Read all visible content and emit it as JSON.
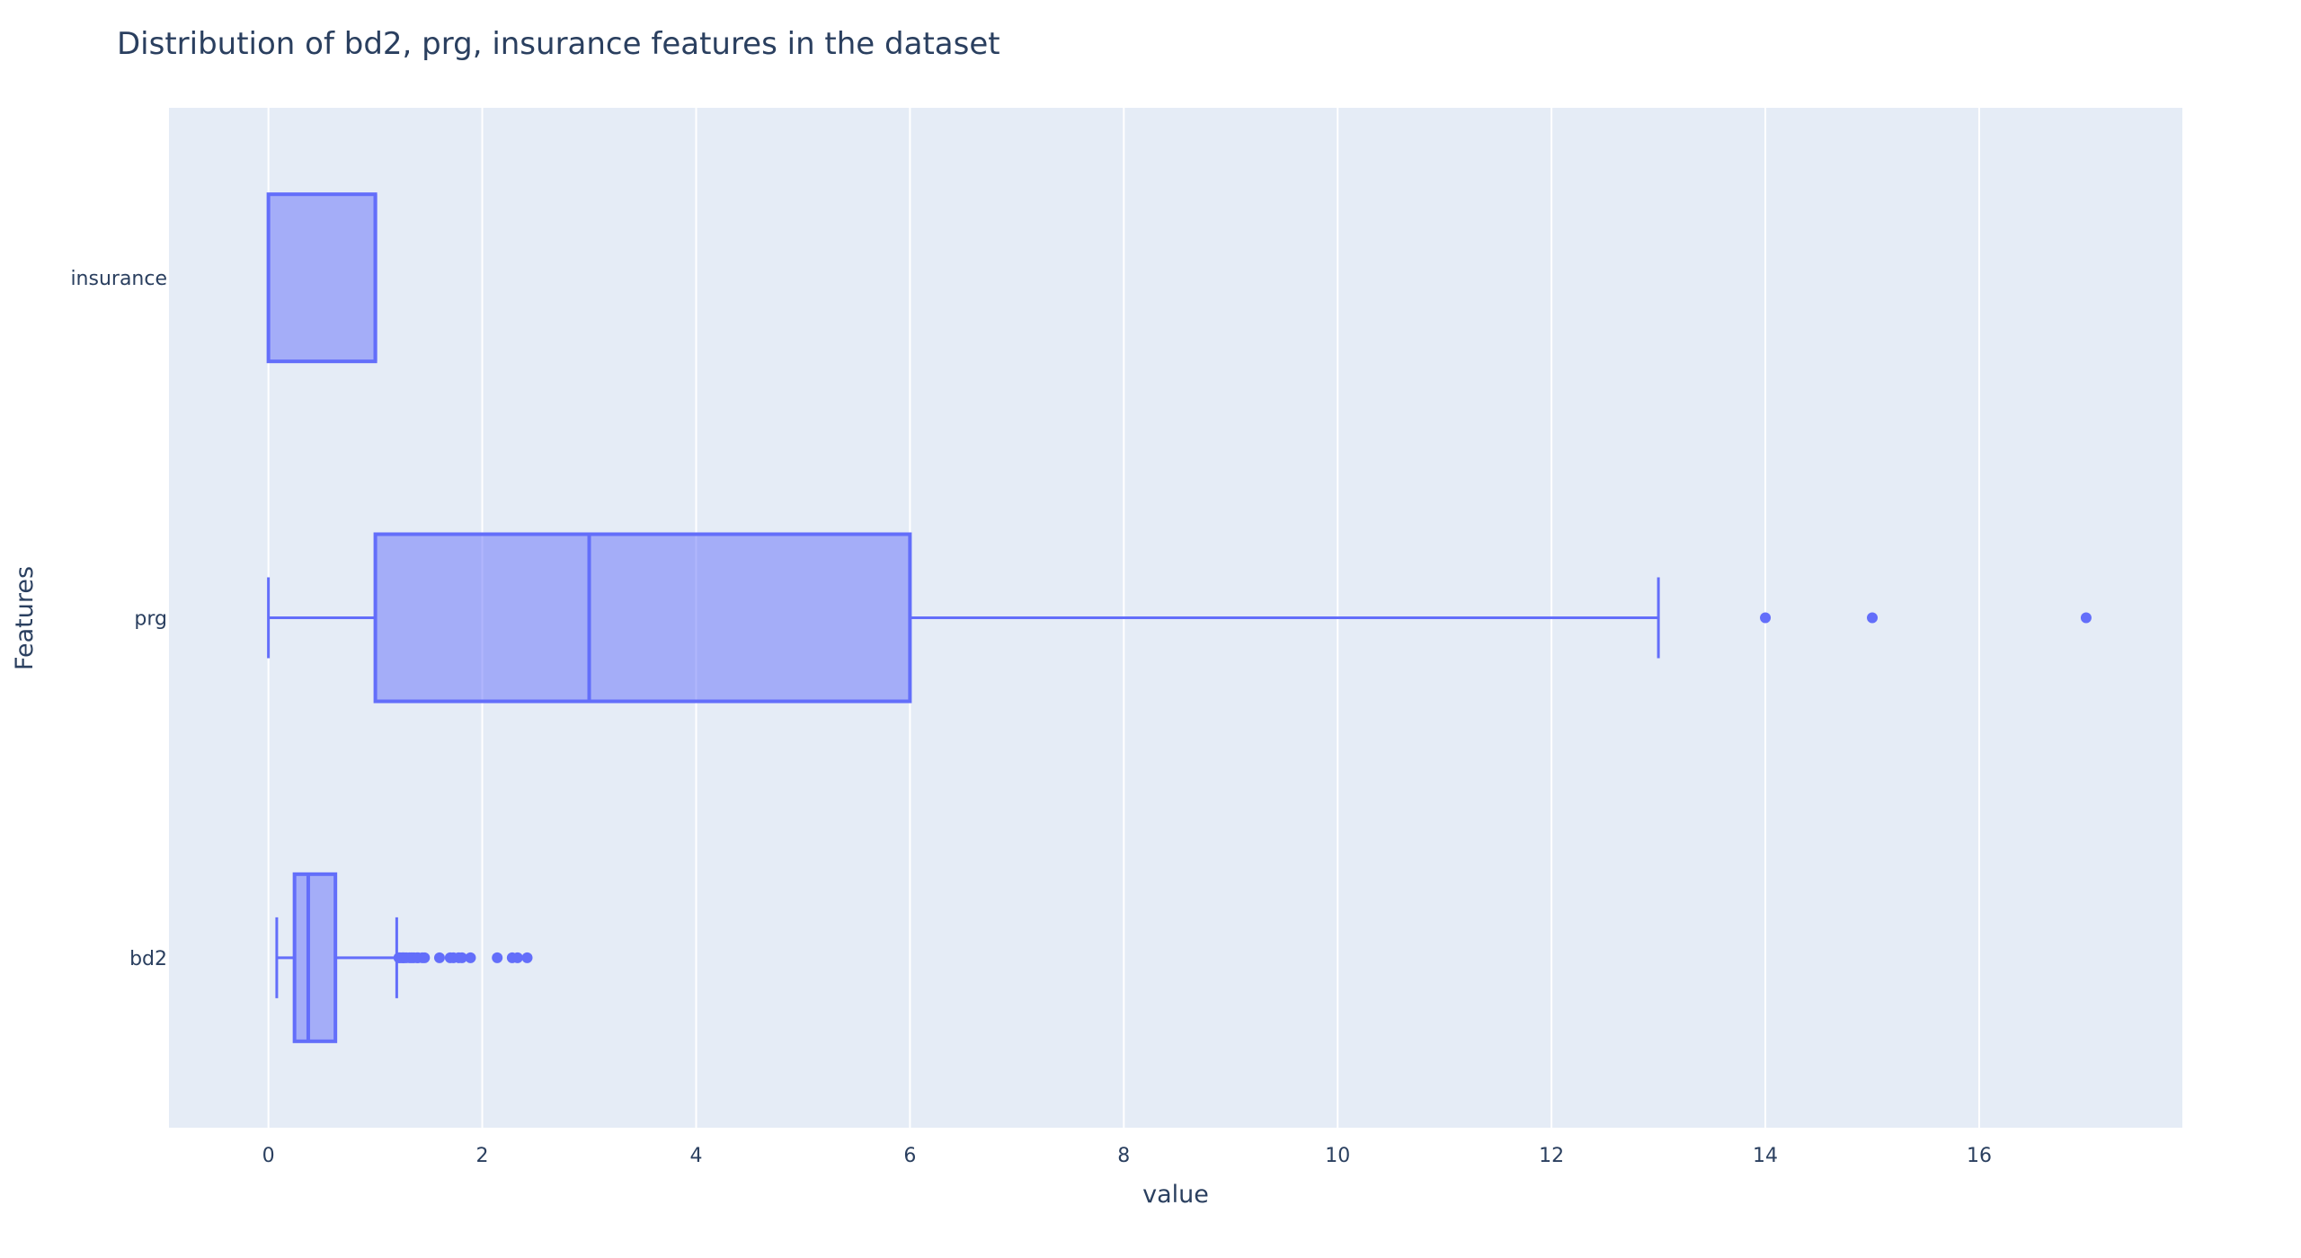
{
  "chart_data": {
    "type": "box",
    "orientation": "horizontal",
    "title": "Distribution of bd2, prg, insurance features in the dataset",
    "xlabel": "value",
    "ylabel": "Features",
    "xlim": [
      -0.93,
      17.9
    ],
    "x_ticks": [
      0,
      2,
      4,
      6,
      8,
      10,
      12,
      14,
      16
    ],
    "categories": [
      "insurance",
      "prg",
      "bd2"
    ],
    "grid": true,
    "legend": "none",
    "colors": {
      "box_line": "#636efa",
      "box_fill": "rgba(99,110,250,0.5)",
      "plot_bg": "#e5ecf6",
      "grid": "#ffffff"
    },
    "boxes": [
      {
        "category": "insurance",
        "whisker_low": 0,
        "q1": 0,
        "median": 1,
        "q3": 1,
        "whisker_high": 1,
        "outliers": []
      },
      {
        "category": "prg",
        "whisker_low": 0,
        "q1": 1,
        "median": 3,
        "q3": 6,
        "whisker_high": 13,
        "outliers": [
          14,
          15,
          17
        ]
      },
      {
        "category": "bd2",
        "whisker_low": 0.078,
        "q1": 0.244,
        "median": 0.3725,
        "q3": 0.6265,
        "whisker_high": 1.2,
        "outliers": [
          1.22,
          1.23,
          1.25,
          1.26,
          1.27,
          1.29,
          1.32,
          1.34,
          1.36,
          1.39,
          1.4,
          1.44,
          1.46,
          1.6,
          1.7,
          1.73,
          1.78,
          1.81,
          1.89,
          2.14,
          2.28,
          2.33,
          2.42
        ]
      }
    ]
  }
}
